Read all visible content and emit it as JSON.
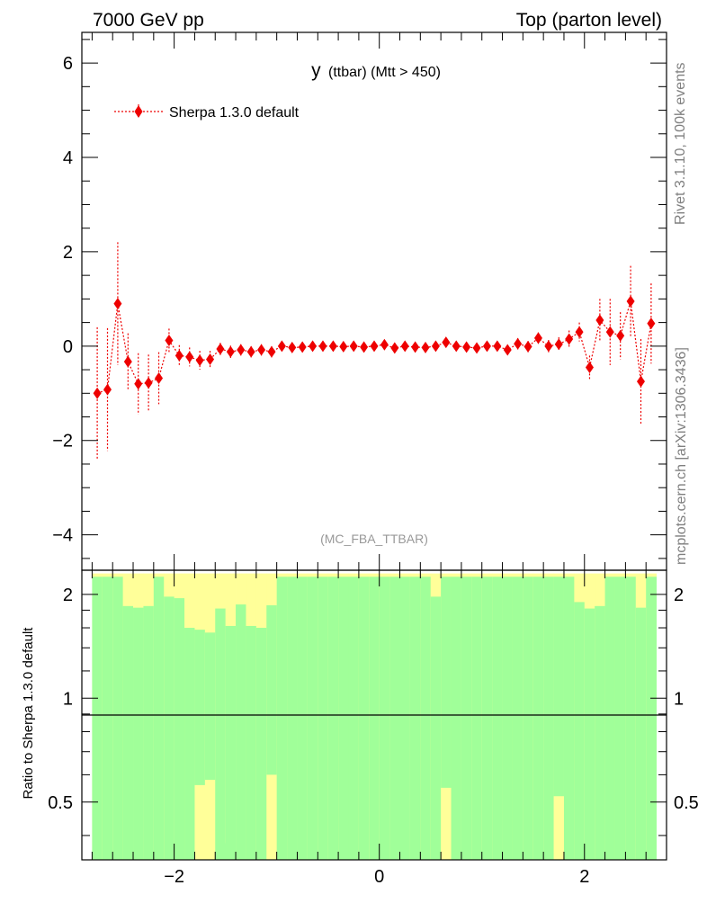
{
  "header": {
    "left_label": "7000 GeV pp",
    "right_label": "Top (parton level)"
  },
  "side_labels": {
    "top": "Rivet 3.1.10,  100k events",
    "bottom": "mcplots.cern.ch [arXiv:1306.3436]"
  },
  "analysis_label": "(MC_FBA_TTBAR)",
  "colors": {
    "series": "#ee0000",
    "band_inner": "#a0ff99",
    "band_outer": "#ffff99",
    "frame": "#000000",
    "side_text": "#808080"
  },
  "chart_data": [
    {
      "type": "scatter",
      "title": "y",
      "title_suffix": "(ttbar) (Mtt > 450)",
      "xlim": [
        -2.9,
        2.8
      ],
      "ylim": [
        -4.75,
        6.65
      ],
      "yticks": [
        -4,
        -2,
        0,
        2,
        4,
        6
      ],
      "ytick_labels": [
        "−4",
        "−2",
        "0",
        "2",
        "4",
        "6"
      ],
      "legend": {
        "placement": "top-left",
        "entries": [
          "Sherpa 1.3.0 default"
        ]
      },
      "series": [
        {
          "name": "Sherpa 1.3.0 default",
          "x": [
            -2.75,
            -2.65,
            -2.55,
            -2.45,
            -2.35,
            -2.25,
            -2.15,
            -2.05,
            -1.95,
            -1.85,
            -1.75,
            -1.65,
            -1.55,
            -1.45,
            -1.35,
            -1.25,
            -1.15,
            -1.05,
            -0.95,
            -0.85,
            -0.75,
            -0.65,
            -0.55,
            -0.45,
            -0.35,
            -0.25,
            -0.15,
            -0.05,
            0.05,
            0.15,
            0.25,
            0.35,
            0.45,
            0.55,
            0.65,
            0.75,
            0.85,
            0.95,
            1.05,
            1.15,
            1.25,
            1.35,
            1.45,
            1.55,
            1.65,
            1.75,
            1.85,
            1.95,
            2.05,
            2.15,
            2.25,
            2.35,
            2.45,
            2.55,
            2.65
          ],
          "y": [
            -1.0,
            -0.92,
            0.9,
            -0.33,
            -0.8,
            -0.78,
            -0.68,
            0.12,
            -0.2,
            -0.23,
            -0.3,
            -0.28,
            -0.06,
            -0.12,
            -0.08,
            -0.12,
            -0.08,
            -0.12,
            0.0,
            -0.03,
            -0.02,
            0.0,
            0.0,
            0.0,
            -0.01,
            0.0,
            -0.02,
            0.0,
            0.03,
            -0.04,
            0.0,
            -0.02,
            -0.03,
            0.0,
            0.08,
            0.0,
            -0.02,
            -0.04,
            0.0,
            0.0,
            -0.08,
            0.05,
            -0.01,
            0.17,
            0.0,
            0.04,
            0.15,
            0.3,
            -0.45,
            0.55,
            0.3,
            0.22,
            0.95,
            -0.75,
            0.48
          ],
          "err": [
            1.4,
            1.3,
            1.3,
            0.6,
            0.65,
            0.6,
            0.55,
            0.25,
            0.22,
            0.2,
            0.2,
            0.18,
            0.13,
            0.13,
            0.12,
            0.12,
            0.12,
            0.12,
            0.1,
            0.1,
            0.1,
            0.1,
            0.1,
            0.1,
            0.1,
            0.1,
            0.1,
            0.1,
            0.1,
            0.1,
            0.1,
            0.1,
            0.1,
            0.1,
            0.1,
            0.1,
            0.1,
            0.1,
            0.1,
            0.1,
            0.1,
            0.12,
            0.12,
            0.12,
            0.13,
            0.15,
            0.18,
            0.2,
            0.25,
            0.45,
            0.7,
            0.5,
            0.75,
            0.9,
            0.85
          ]
        }
      ]
    },
    {
      "type": "area",
      "ylabel": "Ratio to Sherpa 1.3.0 default",
      "xlim": [
        -2.9,
        2.8
      ],
      "ylim": [
        0.34,
        2.35
      ],
      "ylog": true,
      "reference_line": 1,
      "xticks": [
        -2,
        0,
        2
      ],
      "xtick_labels": [
        "−2",
        "0",
        "2"
      ],
      "yticks": [
        0.5,
        1,
        2
      ],
      "ytick_labels": [
        "0.5",
        "1",
        "2"
      ],
      "band_edges": [
        -2.8,
        -2.7,
        -2.6,
        -2.5,
        -2.4,
        -2.3,
        -2.2,
        -2.1,
        -2.0,
        -1.9,
        -1.8,
        -1.7,
        -1.6,
        -1.5,
        -1.4,
        -1.3,
        -1.2,
        -1.1,
        -1.0,
        -0.9,
        -0.8,
        -0.7,
        -0.6,
        -0.5,
        -0.4,
        -0.3,
        -0.2,
        -0.1,
        0.0,
        0.1,
        0.2,
        0.3,
        0.4,
        0.5,
        0.6,
        0.7,
        0.8,
        0.9,
        1.0,
        1.1,
        1.2,
        1.3,
        1.4,
        1.5,
        1.6,
        1.7,
        1.8,
        1.9,
        2.0,
        2.1,
        2.2,
        2.3,
        2.4,
        2.5,
        2.6,
        2.7
      ],
      "inner_hi": [
        2.25,
        2.25,
        2.25,
        1.85,
        1.83,
        1.85,
        2.25,
        1.97,
        1.95,
        1.6,
        1.58,
        1.55,
        1.82,
        1.62,
        1.87,
        1.62,
        1.6,
        1.86,
        2.25,
        2.25,
        2.25,
        2.25,
        2.25,
        2.25,
        2.25,
        2.25,
        2.25,
        2.25,
        2.25,
        2.25,
        2.25,
        2.25,
        2.25,
        1.97,
        2.25,
        2.25,
        2.25,
        2.25,
        2.25,
        2.25,
        2.25,
        2.25,
        2.25,
        2.25,
        2.25,
        2.25,
        2.25,
        1.9,
        1.82,
        1.85,
        2.25,
        2.25,
        2.25,
        1.83,
        2.25
      ],
      "outer_hi": [
        2.3,
        2.3,
        2.3,
        2.3,
        2.3,
        2.3,
        2.3,
        2.3,
        2.3,
        2.3,
        2.3,
        2.3,
        2.3,
        2.3,
        2.3,
        2.3,
        2.3,
        2.3,
        2.3,
        2.3,
        2.3,
        2.3,
        2.3,
        2.3,
        2.3,
        2.3,
        2.3,
        2.3,
        2.3,
        2.3,
        2.3,
        2.3,
        2.3,
        2.3,
        2.3,
        2.3,
        2.3,
        2.3,
        2.3,
        2.3,
        2.3,
        2.3,
        2.3,
        2.3,
        2.3,
        2.3,
        2.3,
        2.3,
        2.3,
        2.3,
        2.3,
        2.3,
        2.3,
        2.3,
        2.3
      ],
      "inner_lo": [
        0.34,
        0.34,
        0.34,
        0.34,
        0.34,
        0.34,
        0.34,
        0.34,
        0.34,
        0.34,
        0.56,
        0.58,
        0.34,
        0.34,
        0.34,
        0.34,
        0.34,
        0.6,
        0.34,
        0.34,
        0.34,
        0.34,
        0.34,
        0.34,
        0.34,
        0.34,
        0.34,
        0.34,
        0.34,
        0.34,
        0.34,
        0.34,
        0.34,
        0.34,
        0.55,
        0.34,
        0.34,
        0.34,
        0.34,
        0.34,
        0.34,
        0.34,
        0.34,
        0.34,
        0.34,
        0.52,
        0.34,
        0.34,
        0.34,
        0.34,
        0.34,
        0.34,
        0.34,
        0.34,
        0.34
      ],
      "outer_lo": [
        0.34,
        0.34,
        0.34,
        0.34,
        0.34,
        0.34,
        0.34,
        0.34,
        0.34,
        0.34,
        0.34,
        0.34,
        0.34,
        0.38,
        0.34,
        0.34,
        0.34,
        0.34,
        0.34,
        0.34,
        0.34,
        0.34,
        0.34,
        0.34,
        0.34,
        0.34,
        0.34,
        0.34,
        0.34,
        0.34,
        0.34,
        0.34,
        0.34,
        0.34,
        0.34,
        0.34,
        0.34,
        0.34,
        0.34,
        0.34,
        0.34,
        0.34,
        0.34,
        0.34,
        0.34,
        0.34,
        0.34,
        0.34,
        0.34,
        0.34,
        0.34,
        0.34,
        0.34,
        0.34,
        0.34
      ]
    }
  ]
}
